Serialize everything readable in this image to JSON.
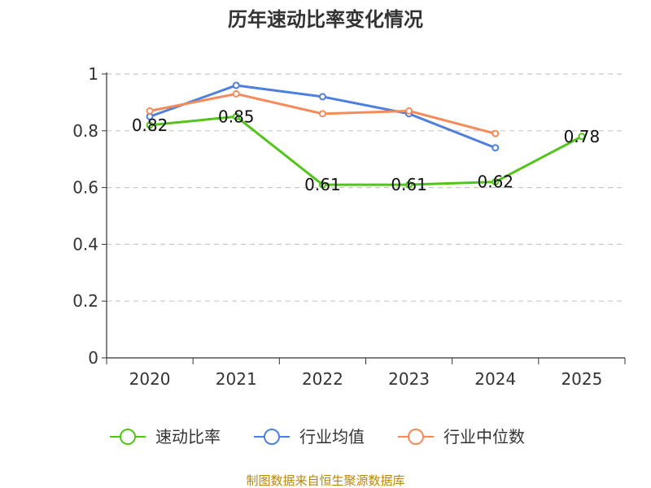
{
  "chart_data": {
    "type": "line",
    "title": "历年速动比率变化情况",
    "categories": [
      "2020",
      "2021",
      "2022",
      "2023",
      "2024",
      "2025"
    ],
    "ylim": [
      0,
      1
    ],
    "yticks": [
      "0",
      "0.2",
      "0.4",
      "0.6",
      "0.8",
      "1"
    ],
    "grid": true,
    "legend_position": "bottom",
    "series": [
      {
        "name": "速动比率",
        "color": "#52c41a",
        "values": [
          0.82,
          0.85,
          0.61,
          0.61,
          0.62,
          0.78
        ],
        "labels": [
          "0.82",
          "0.85",
          "0.61",
          "0.61",
          "0.62",
          "0.78"
        ],
        "show_labels": true
      },
      {
        "name": "行业均值",
        "color": "#4f7fdc",
        "values": [
          0.85,
          0.96,
          0.92,
          0.86,
          0.74,
          null
        ],
        "show_labels": false
      },
      {
        "name": "行业中位数",
        "color": "#f58b5a",
        "values": [
          0.87,
          0.93,
          0.86,
          0.87,
          0.79,
          null
        ],
        "show_labels": false
      }
    ],
    "source": "制图数据来自恒生聚源数据库"
  }
}
